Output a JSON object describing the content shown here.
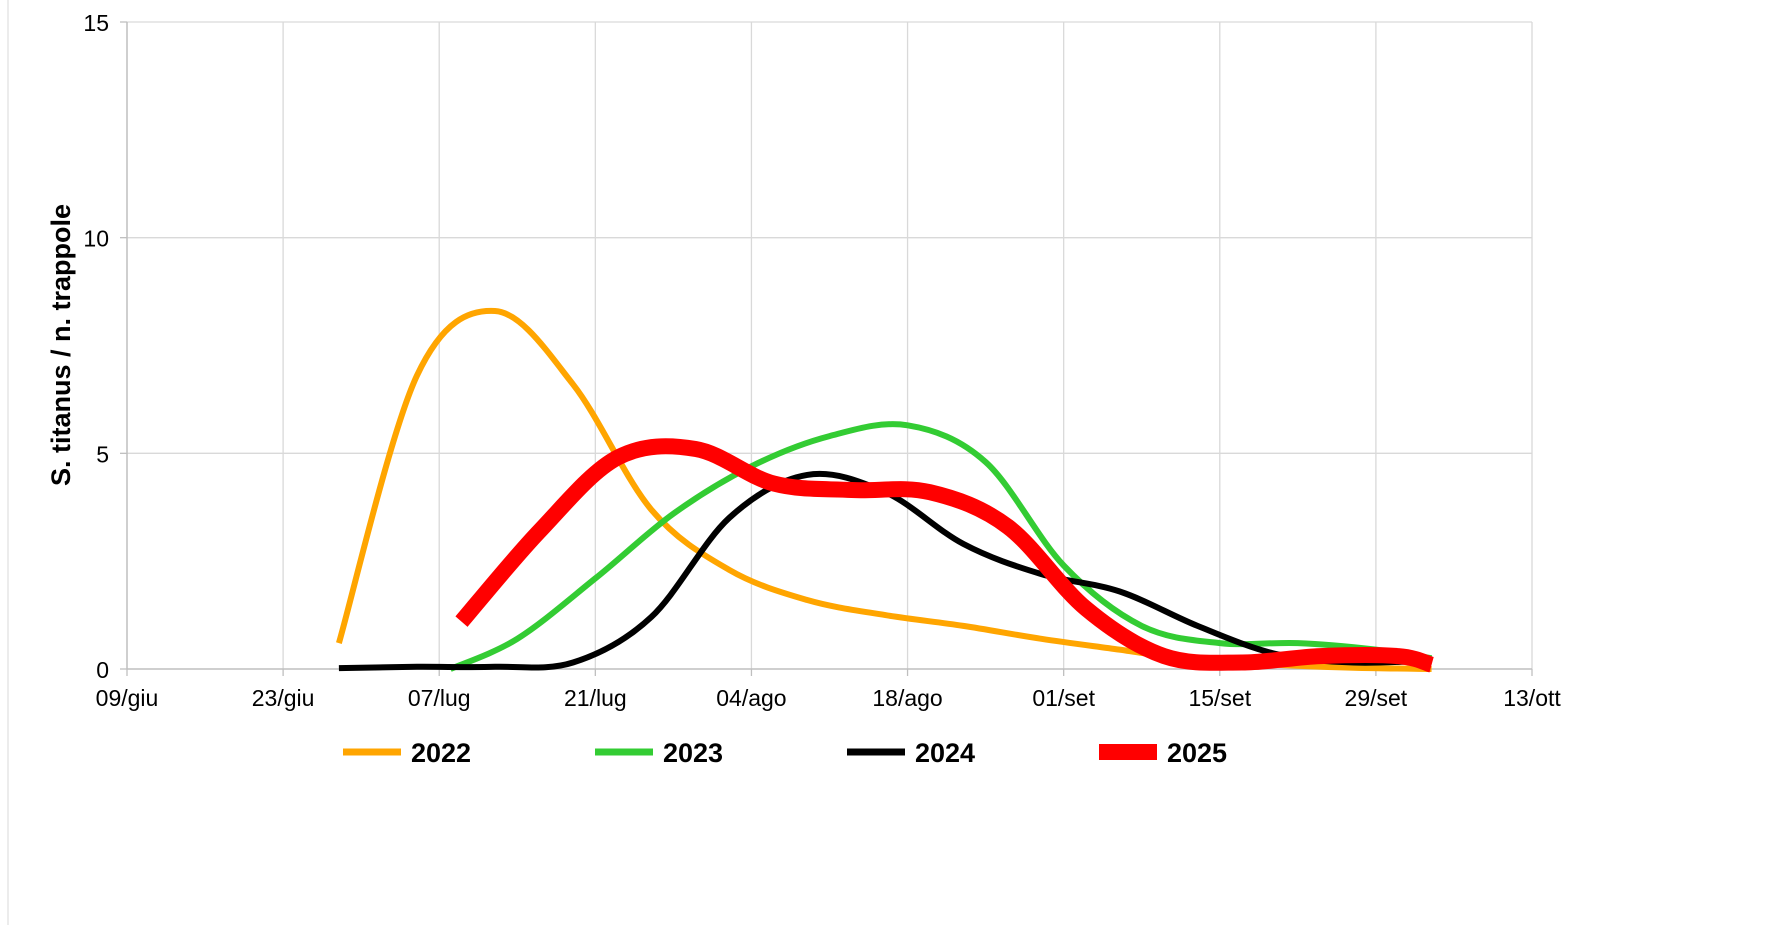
{
  "chart_data": {
    "type": "line",
    "title": "",
    "xlabel": "",
    "ylabel": "S. titanus / n. trappole",
    "x_ticks": [
      "09/giu",
      "23/giu",
      "07/lug",
      "21/lug",
      "04/ago",
      "18/ago",
      "01/set",
      "15/set",
      "29/set",
      "13/ott"
    ],
    "y_ticks": [
      "0",
      "5",
      "10",
      "15"
    ],
    "ylim": [
      0,
      15
    ],
    "xlim": [
      "09/giu",
      "13/ott"
    ],
    "grid": true,
    "legend_position": "bottom",
    "smooth": true,
    "series": [
      {
        "name": "2022",
        "color": "#ffa500",
        "line_width": 6,
        "points": [
          {
            "x": "28/giu",
            "y": 0.6
          },
          {
            "x": "05/lug",
            "y": 6.8
          },
          {
            "x": "12/lug",
            "y": 8.3
          },
          {
            "x": "19/lug",
            "y": 6.6
          },
          {
            "x": "26/lug",
            "y": 3.7
          },
          {
            "x": "02/ago",
            "y": 2.3
          },
          {
            "x": "09/ago",
            "y": 1.6
          },
          {
            "x": "16/ago",
            "y": 1.25
          },
          {
            "x": "23/ago",
            "y": 1.0
          },
          {
            "x": "30/ago",
            "y": 0.7
          },
          {
            "x": "06/set",
            "y": 0.45
          },
          {
            "x": "13/set",
            "y": 0.2
          },
          {
            "x": "20/set",
            "y": 0.1
          },
          {
            "x": "27/set",
            "y": 0.03
          },
          {
            "x": "04/ott",
            "y": 0.0
          }
        ]
      },
      {
        "name": "2023",
        "color": "#33cc33",
        "line_width": 6,
        "points": [
          {
            "x": "08/lug",
            "y": 0.0
          },
          {
            "x": "14/lug",
            "y": 0.7
          },
          {
            "x": "21/lug",
            "y": 2.1
          },
          {
            "x": "28/lug",
            "y": 3.6
          },
          {
            "x": "04/ago",
            "y": 4.7
          },
          {
            "x": "11/ago",
            "y": 5.4
          },
          {
            "x": "18/ago",
            "y": 5.65
          },
          {
            "x": "25/ago",
            "y": 4.8
          },
          {
            "x": "01/set",
            "y": 2.4
          },
          {
            "x": "08/set",
            "y": 1.0
          },
          {
            "x": "15/set",
            "y": 0.6
          },
          {
            "x": "22/set",
            "y": 0.6
          },
          {
            "x": "29/set",
            "y": 0.45
          },
          {
            "x": "04/ott",
            "y": 0.25
          }
        ]
      },
      {
        "name": "2024",
        "color": "#000000",
        "line_width": 6,
        "points": [
          {
            "x": "28/giu",
            "y": 0.02
          },
          {
            "x": "05/lug",
            "y": 0.05
          },
          {
            "x": "12/lug",
            "y": 0.05
          },
          {
            "x": "19/lug",
            "y": 0.15
          },
          {
            "x": "26/lug",
            "y": 1.2
          },
          {
            "x": "02/ago",
            "y": 3.5
          },
          {
            "x": "09/ago",
            "y": 4.5
          },
          {
            "x": "16/ago",
            "y": 4.1
          },
          {
            "x": "23/ago",
            "y": 2.9
          },
          {
            "x": "30/ago",
            "y": 2.2
          },
          {
            "x": "06/set",
            "y": 1.8
          },
          {
            "x": "13/set",
            "y": 1.0
          },
          {
            "x": "20/set",
            "y": 0.35
          },
          {
            "x": "27/set",
            "y": 0.15
          },
          {
            "x": "04/ott",
            "y": 0.2
          }
        ]
      },
      {
        "name": "2025",
        "color": "#ff0000",
        "line_width": 16,
        "points": [
          {
            "x": "09/lug",
            "y": 1.1
          },
          {
            "x": "16/lug",
            "y": 3.2
          },
          {
            "x": "23/lug",
            "y": 4.9
          },
          {
            "x": "30/lug",
            "y": 5.1
          },
          {
            "x": "06/ago",
            "y": 4.3
          },
          {
            "x": "13/ago",
            "y": 4.15
          },
          {
            "x": "20/ago",
            "y": 4.1
          },
          {
            "x": "27/ago",
            "y": 3.3
          },
          {
            "x": "03/set",
            "y": 1.4
          },
          {
            "x": "10/set",
            "y": 0.3
          },
          {
            "x": "17/set",
            "y": 0.15
          },
          {
            "x": "24/set",
            "y": 0.3
          },
          {
            "x": "01/ott",
            "y": 0.3
          },
          {
            "x": "04/ott",
            "y": 0.1
          }
        ]
      }
    ]
  }
}
